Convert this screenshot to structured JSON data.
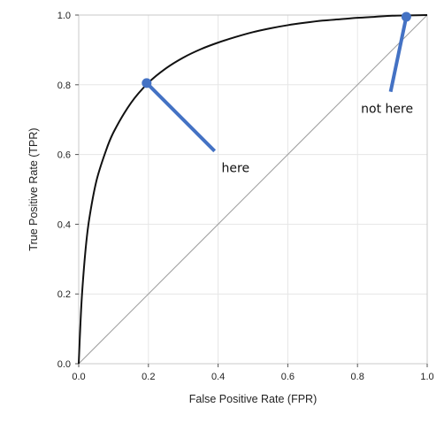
{
  "chart_data": {
    "type": "line",
    "xlabel": "False Positive Rate (FPR)",
    "ylabel": "True Positive Rate (TPR)",
    "xlim": [
      0,
      1
    ],
    "ylim": [
      0,
      1
    ],
    "x_ticks": [
      0,
      0.2,
      0.4,
      0.6,
      0.8,
      1
    ],
    "y_ticks": [
      0,
      0.2,
      0.4,
      0.6,
      0.8,
      1
    ],
    "x_tick_labels": [
      "0.0",
      "0.2",
      "0.4",
      "0.6",
      "0.8",
      "1.0"
    ],
    "y_tick_labels": [
      "0.0",
      "0.2",
      "0.4",
      "0.6",
      "0.8",
      "1.0"
    ],
    "grid": true,
    "series": [
      {
        "x": [
          0,
          0.005,
          0.01,
          0.02,
          0.03,
          0.05,
          0.075,
          0.1,
          0.15,
          0.2,
          0.25,
          0.3,
          0.35,
          0.4,
          0.45,
          0.5,
          0.55,
          0.6,
          0.65,
          0.7,
          0.75,
          0.8,
          0.85,
          0.9,
          0.95,
          1
        ],
        "values": [
          0,
          0.116,
          0.207,
          0.331,
          0.414,
          0.521,
          0.602,
          0.664,
          0.748,
          0.806,
          0.847,
          0.878,
          0.902,
          0.921,
          0.937,
          0.951,
          0.962,
          0.971,
          0.978,
          0.984,
          0.988,
          0.992,
          0.995,
          0.998,
          0.999,
          1
        ],
        "color": "#111111"
      },
      {
        "x": [
          0,
          1
        ],
        "values": [
          0,
          1
        ],
        "color": "#a0a0a0"
      }
    ],
    "annotations": [
      {
        "text": "here",
        "point": [
          0.195,
          0.805
        ],
        "pointer_end": [
          0.39,
          0.61
        ],
        "text_anchor": [
          0.41,
          0.55
        ],
        "color": "#4472c4"
      },
      {
        "text": "not here",
        "point": [
          0.94,
          0.995
        ],
        "pointer_end": [
          0.895,
          0.78
        ],
        "text_anchor": [
          0.81,
          0.72
        ],
        "color": "#4472c4"
      }
    ]
  }
}
